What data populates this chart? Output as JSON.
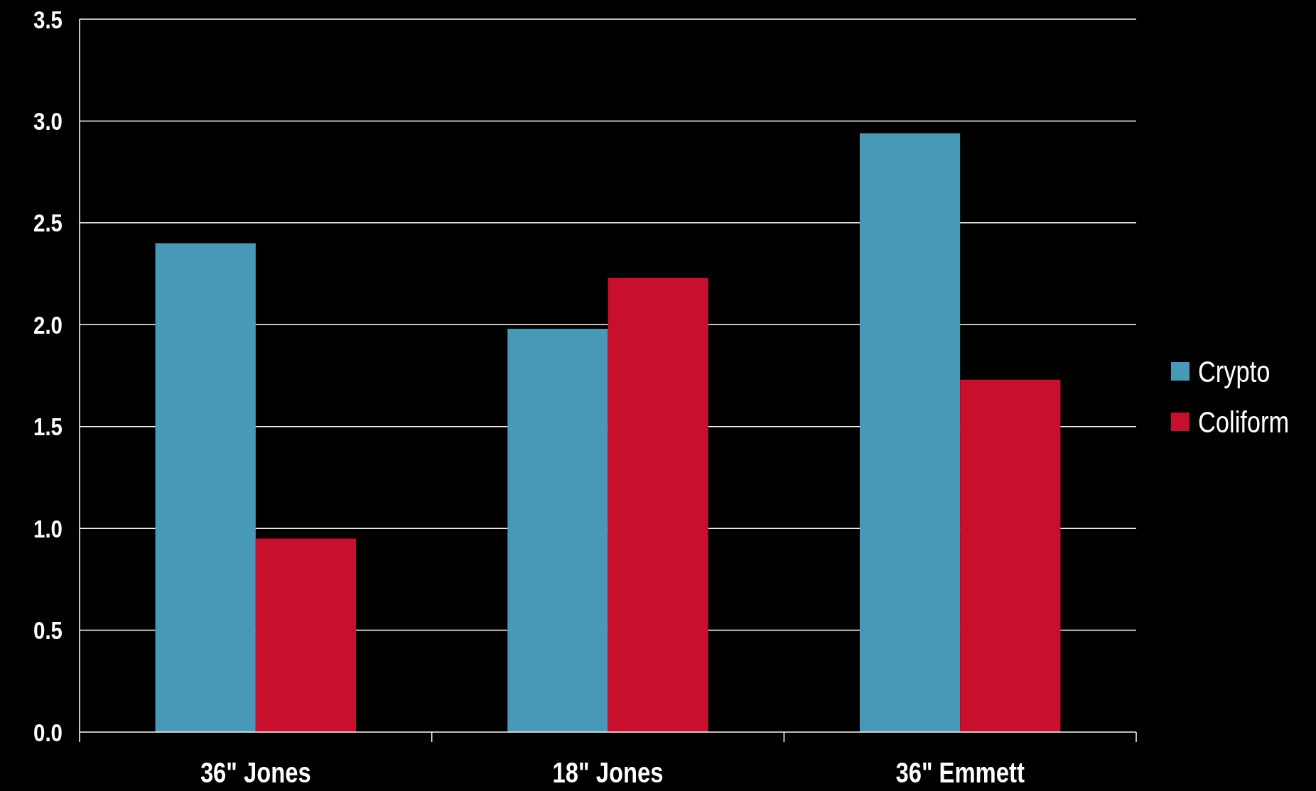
{
  "chart_data": {
    "type": "bar",
    "categories": [
      "36\" Jones",
      "18\" Jones",
      "36\" Emmett"
    ],
    "series": [
      {
        "name": "Crypto",
        "color": "#4799b7",
        "values": [
          2.4,
          1.98,
          2.94
        ]
      },
      {
        "name": "Coliform",
        "color": "#c8102e",
        "values": [
          0.95,
          2.23,
          1.73
        ]
      }
    ],
    "ylim": [
      0,
      3.5
    ],
    "yticks": [
      {
        "value": 0,
        "label": "0.0"
      },
      {
        "value": 0.5,
        "label": "0.5"
      },
      {
        "value": 1,
        "label": "1.0"
      },
      {
        "value": 1.5,
        "label": "1.5"
      },
      {
        "value": 2,
        "label": "2.0"
      },
      {
        "value": 2.5,
        "label": "2.5"
      },
      {
        "value": 3,
        "label": "3.0"
      },
      {
        "value": 3.5,
        "label": "3.5"
      }
    ],
    "grid": "y",
    "legend": "right"
  }
}
